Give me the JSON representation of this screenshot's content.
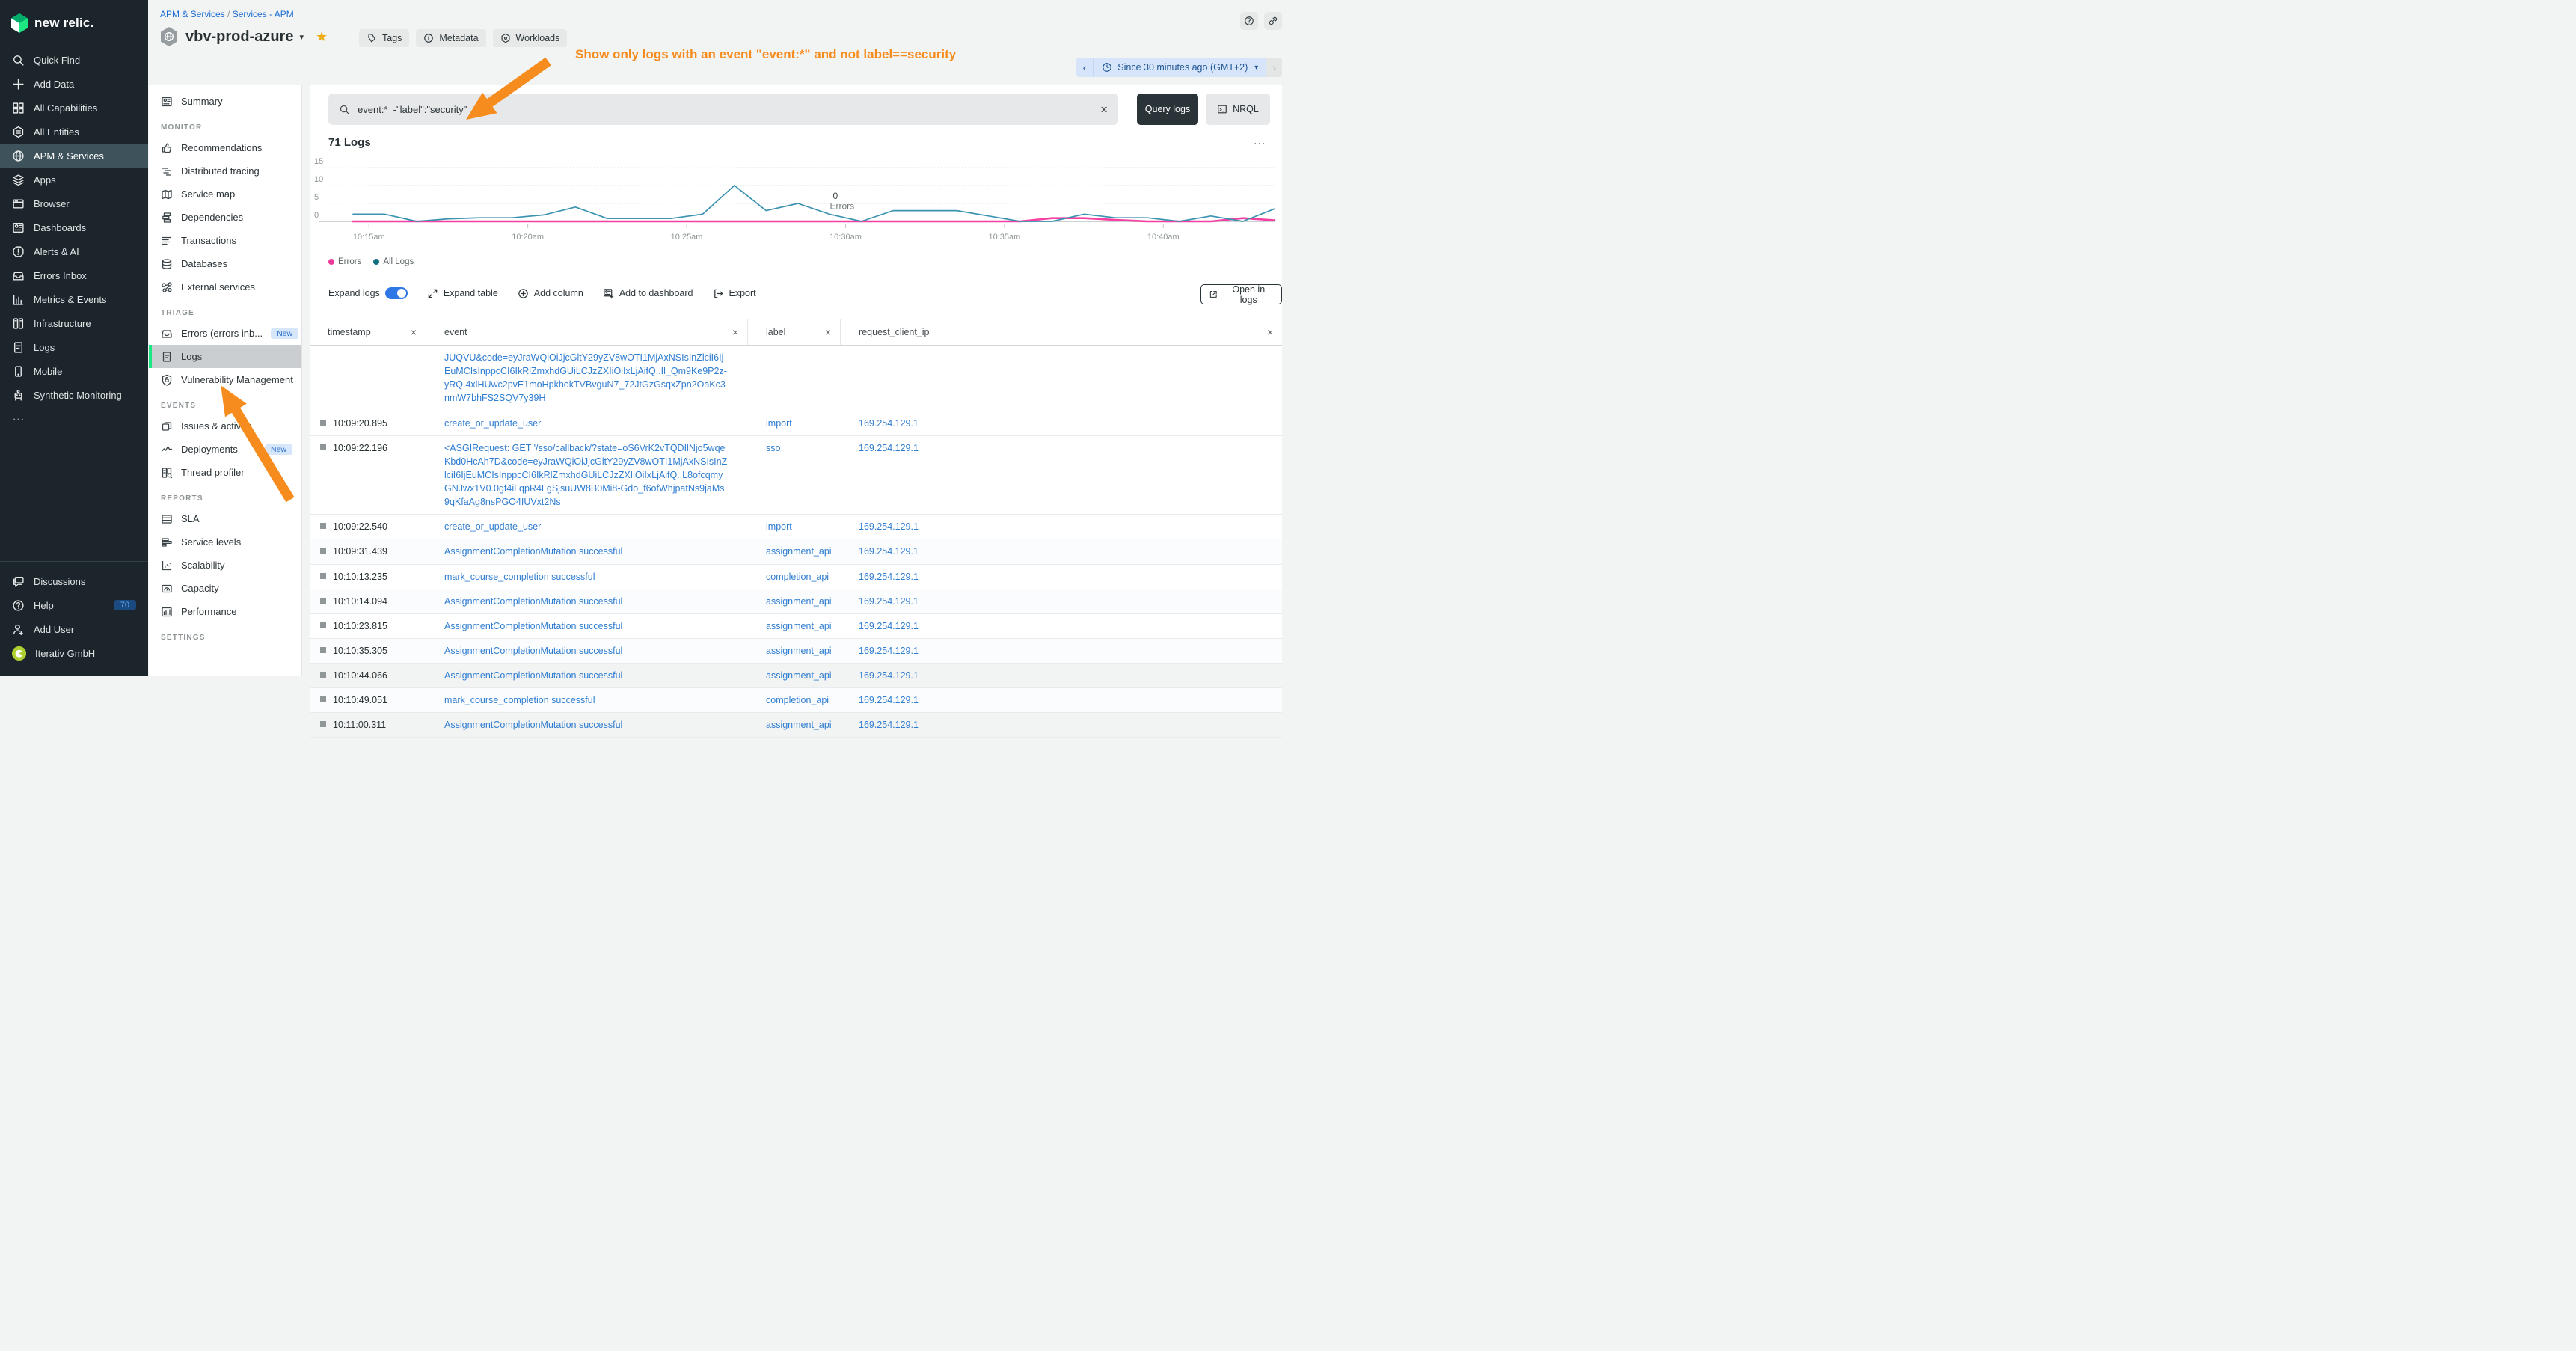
{
  "brand": {
    "logo_text": "new relic."
  },
  "sidebar": {
    "items": [
      {
        "label": "Quick Find",
        "icon": "search"
      },
      {
        "label": "Add Data",
        "icon": "plus"
      },
      {
        "label": "All Capabilities",
        "icon": "grid"
      },
      {
        "label": "All Entities",
        "icon": "entities"
      },
      {
        "label": "APM & Services",
        "icon": "globe",
        "active": true
      },
      {
        "label": "Apps",
        "icon": "layers"
      },
      {
        "label": "Browser",
        "icon": "browser"
      },
      {
        "label": "Dashboards",
        "icon": "dashboard"
      },
      {
        "label": "Alerts & AI",
        "icon": "alert"
      },
      {
        "label": "Errors Inbox",
        "icon": "inbox"
      },
      {
        "label": "Metrics & Events",
        "icon": "metrics"
      },
      {
        "label": "Infrastructure",
        "icon": "infrastructure"
      },
      {
        "label": "Logs",
        "icon": "doc"
      },
      {
        "label": "Mobile",
        "icon": "mobile"
      },
      {
        "label": "Synthetic Monitoring",
        "icon": "robot"
      },
      {
        "label": "...",
        "icon": "dots"
      }
    ],
    "footer": [
      {
        "label": "Discussions",
        "icon": "chat"
      },
      {
        "label": "Help",
        "icon": "help",
        "badge": "70"
      },
      {
        "label": "Add User",
        "icon": "user-plus"
      },
      {
        "label": "Iterativ GmbH",
        "icon": "org"
      }
    ]
  },
  "subnav": {
    "sections": [
      {
        "label": "",
        "items": [
          {
            "label": "Summary",
            "icon": "summary"
          }
        ]
      },
      {
        "label": "MONITOR",
        "items": [
          {
            "label": "Recommendations",
            "icon": "thumb"
          },
          {
            "label": "Distributed tracing",
            "icon": "tracing"
          },
          {
            "label": "Service map",
            "icon": "map"
          },
          {
            "label": "Dependencies",
            "icon": "stack"
          },
          {
            "label": "Transactions",
            "icon": "lines"
          },
          {
            "label": "Databases",
            "icon": "db"
          },
          {
            "label": "External services",
            "icon": "ext-services"
          }
        ]
      },
      {
        "label": "TRIAGE",
        "items": [
          {
            "label": "Errors (errors inb...",
            "icon": "inbox",
            "badge": "New"
          },
          {
            "label": "Logs",
            "icon": "doc",
            "active": true
          },
          {
            "label": "Vulnerability Management",
            "icon": "shield"
          }
        ]
      },
      {
        "label": "EVENTS",
        "items": [
          {
            "label": "Issues & activity",
            "icon": "copies"
          },
          {
            "label": "Deployments",
            "icon": "pulse",
            "badge": "New"
          },
          {
            "label": "Thread profiler",
            "icon": "profiler"
          }
        ]
      },
      {
        "label": "REPORTS",
        "items": [
          {
            "label": "SLA",
            "icon": "table"
          },
          {
            "label": "Service levels",
            "icon": "bars-h"
          },
          {
            "label": "Scalability",
            "icon": "scatter"
          },
          {
            "label": "Capacity",
            "icon": "capacity"
          },
          {
            "label": "Performance",
            "icon": "perf"
          }
        ]
      },
      {
        "label": "SETTINGS",
        "items": []
      }
    ]
  },
  "header": {
    "breadcrumb": [
      "APM & Services",
      "Services - APM"
    ],
    "entity_name": "vbv-prod-azure",
    "actions": [
      {
        "label": "Tags",
        "icon": "tag"
      },
      {
        "label": "Metadata",
        "icon": "info"
      },
      {
        "label": "Workloads",
        "icon": "hexagon"
      }
    ],
    "time_picker": {
      "label": "Since 30 minutes ago (GMT+2)",
      "prev": "‹",
      "next": "›"
    }
  },
  "annotation": {
    "text": "Show only logs with an event \"event:*\" and not label==security",
    "color": "#f78c1e"
  },
  "query_bar": {
    "value": "event:*  -\"label\":\"security\"",
    "query_button": "Query logs",
    "nrql_button": "NRQL"
  },
  "logs_panel": {
    "title": "71 Logs",
    "more": "...",
    "legend": [
      {
        "label": "Errors",
        "color": "#ea3b9a"
      },
      {
        "label": "All Logs",
        "color": "#11707f"
      }
    ],
    "toolbar": {
      "expand_logs": "Expand logs",
      "expand_table": "Expand table",
      "add_column": "Add column",
      "add_to_dashboard": "Add to dashboard",
      "export": "Export",
      "open_in_logs": "Open in logs"
    }
  },
  "chart_data": {
    "type": "line",
    "title": "71 Logs",
    "x_minutes": [
      14.5,
      15.5,
      16.5,
      17.5,
      18.5,
      19.5,
      20.5,
      21.5,
      22.5,
      23.5,
      24.5,
      25.5,
      26.5,
      27.5,
      28.5,
      29.5,
      30.5,
      31.5,
      32.5,
      33.5,
      34.5,
      35.5,
      36.5,
      37.5,
      38.5,
      39.5,
      40.5,
      41.5,
      42.5,
      43.5
    ],
    "series": [
      {
        "name": "Errors",
        "color": "#f540a1",
        "width": 2.6,
        "values": [
          0,
          0,
          0,
          0,
          0,
          0,
          0,
          0,
          0,
          0,
          0,
          0,
          0,
          0,
          0,
          0,
          0,
          0,
          0,
          0,
          0,
          0,
          0.9,
          0.9,
          0.4,
          0,
          0,
          0,
          0.9,
          0.3
        ]
      },
      {
        "name": "All Logs",
        "color": "#3b93b0",
        "width": 1.7,
        "values": [
          2,
          2,
          0,
          0.7,
          1,
          1,
          1.8,
          4,
          0.8,
          0.8,
          0.8,
          2,
          10,
          3,
          5,
          2,
          0,
          3,
          3,
          3,
          1.5,
          0,
          0,
          2,
          1,
          1,
          0,
          1.5,
          0,
          3.5
        ]
      }
    ],
    "ylim": [
      0,
      15
    ],
    "yticks": [
      0,
      5,
      10,
      15
    ],
    "xticks": [
      {
        "minute": 15,
        "label": "10:15am"
      },
      {
        "minute": 20,
        "label": "10:20am"
      },
      {
        "minute": 25,
        "label": "10:25am"
      },
      {
        "minute": 30,
        "label": "10:30am"
      },
      {
        "minute": 35,
        "label": "10:35am"
      },
      {
        "minute": 40,
        "label": "10:40am"
      }
    ],
    "annotation": {
      "value": "0",
      "label": "Errors",
      "minute": 29.6
    },
    "grid": "dotted-horizontal",
    "legend_position": "bottom-left"
  },
  "table": {
    "columns": [
      "timestamp",
      "event",
      "label",
      "request_client_ip"
    ],
    "rows": [
      {
        "timestamp": "",
        "event": "JUQVU&code=eyJraWQiOiJjcGltY29yZV8wOTI1MjAxNSIsInZlciI6IjEuMCIsInppcCI6IkRlZmxhdGUiLCJzZXIiOiIxLjAifQ..Il_Qm9Ke9P2z-yRQ.4xlHUwc2pvE1moHpkhokTVBvguN7_72JtGzGsqxZpn2OaKc3nmW7bhFS2SQV7y39H",
        "label": "",
        "request_client_ip": "",
        "partial": true
      },
      {
        "timestamp": "10:09:20.895",
        "event": "create_or_update_user",
        "label": "import",
        "request_client_ip": "169.254.129.1"
      },
      {
        "timestamp": "10:09:22.196",
        "event": "<ASGIRequest: GET '/sso/callback/?state=oS6VrK2vTQDIlNjo5wqeKbd0HcAh7D&code=eyJraWQiOiJjcGltY29yZV8wOTI1MjAxNSIsInZlciI6IjEuMCIsInppcCI6IkRlZmxhdGUiLCJzZXIiOiIxLjAifQ..L8ofcqmyGNJwx1V0.0gf4iLqpR4LgSjsuUW8B0Mi8-Gdo_f6ofWhjpatNs9jaMs9qKfaAg8nsPGO4IUVxt2Ns",
        "label": "sso",
        "request_client_ip": "169.254.129.1"
      },
      {
        "timestamp": "10:09:22.540",
        "event": "create_or_update_user",
        "label": "import",
        "request_client_ip": "169.254.129.1"
      },
      {
        "timestamp": "10:09:31.439",
        "event": "AssignmentCompletionMutation successful",
        "label": "assignment_api",
        "request_client_ip": "169.254.129.1"
      },
      {
        "timestamp": "10:10:13.235",
        "event": "mark_course_completion successful",
        "label": "completion_api",
        "request_client_ip": "169.254.129.1"
      },
      {
        "timestamp": "10:10:14.094",
        "event": "AssignmentCompletionMutation successful",
        "label": "assignment_api",
        "request_client_ip": "169.254.129.1"
      },
      {
        "timestamp": "10:10:23.815",
        "event": "AssignmentCompletionMutation successful",
        "label": "assignment_api",
        "request_client_ip": "169.254.129.1"
      },
      {
        "timestamp": "10:10:35.305",
        "event": "AssignmentCompletionMutation successful",
        "label": "assignment_api",
        "request_client_ip": "169.254.129.1"
      },
      {
        "timestamp": "10:10:44.066",
        "event": "AssignmentCompletionMutation successful",
        "label": "assignment_api",
        "request_client_ip": "169.254.129.1"
      },
      {
        "timestamp": "10:10:49.051",
        "event": "mark_course_completion successful",
        "label": "completion_api",
        "request_client_ip": "169.254.129.1"
      },
      {
        "timestamp": "10:11:00.311",
        "event": "AssignmentCompletionMutation successful",
        "label": "assignment_api",
        "request_client_ip": "169.254.129.1"
      }
    ]
  },
  "colors": {
    "sidebar_bg": "#1d252c",
    "sidebar_active": "#3d525a",
    "accent_green": "#1ce783",
    "link_blue": "#2f7dd1",
    "breadcrumb_blue": "#1a6cd3",
    "annotation_orange": "#f78c1e",
    "errors_pink": "#f540a1",
    "all_logs_teal": "#3b93b0",
    "star_gold": "#efad13"
  }
}
